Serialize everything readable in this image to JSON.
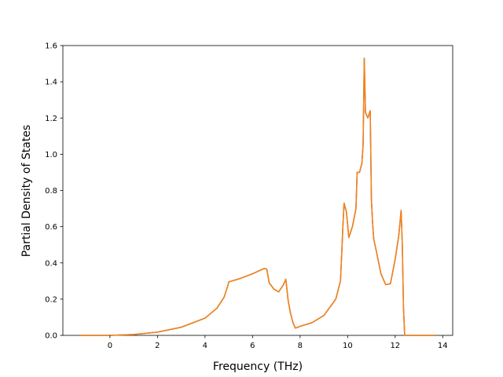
{
  "chart_data": {
    "type": "line",
    "title": "",
    "xlabel": "Frequency (THz)",
    "ylabel": "Partial Density of States",
    "xlim": [
      -1.98,
      14.42
    ],
    "ylim": [
      0.0,
      1.6
    ],
    "xticks": [
      0,
      2,
      4,
      6,
      8,
      10,
      12,
      14
    ],
    "xtick_labels": [
      "0",
      "2",
      "4",
      "6",
      "8",
      "10",
      "12",
      "14"
    ],
    "yticks": [
      0.0,
      0.2,
      0.4,
      0.6,
      0.8,
      1.0,
      1.2,
      1.4,
      1.6
    ],
    "ytick_labels": [
      "0.0",
      "0.2",
      "0.4",
      "0.6",
      "0.8",
      "1.0",
      "1.2",
      "1.4",
      "1.6"
    ],
    "grid": false,
    "legend": "none",
    "series": [
      {
        "color": "#1f77b4",
        "x": [
          -1.28,
          0.0,
          1.0,
          2.0,
          3.0,
          4.0,
          4.5,
          4.8,
          4.95,
          5.0,
          5.5,
          6.0,
          6.5,
          6.6,
          6.7,
          6.9,
          7.1,
          7.3,
          7.4,
          7.5,
          7.6,
          7.7,
          7.8,
          8.0,
          8.5,
          9.0,
          9.5,
          9.7,
          9.8,
          9.85,
          9.95,
          10.05,
          10.2,
          10.35,
          10.4,
          10.5,
          10.6,
          10.65,
          10.7,
          10.75,
          10.85,
          10.95,
          11.0,
          11.05,
          11.1,
          11.2,
          11.4,
          11.6,
          11.8,
          12.0,
          12.15,
          12.25,
          12.3,
          12.35,
          12.4,
          12.45,
          13.0,
          13.7
        ],
        "y": [
          0.0,
          0.0,
          0.005,
          0.018,
          0.045,
          0.095,
          0.15,
          0.21,
          0.27,
          0.295,
          0.315,
          0.34,
          0.37,
          0.365,
          0.29,
          0.255,
          0.24,
          0.28,
          0.31,
          0.19,
          0.12,
          0.07,
          0.04,
          0.05,
          0.07,
          0.11,
          0.2,
          0.3,
          0.6,
          0.73,
          0.68,
          0.54,
          0.6,
          0.7,
          0.9,
          0.9,
          0.95,
          1.05,
          1.53,
          1.23,
          1.2,
          1.24,
          0.75,
          0.62,
          0.53,
          0.47,
          0.34,
          0.28,
          0.285,
          0.42,
          0.55,
          0.69,
          0.5,
          0.15,
          0.0,
          0.0,
          0.0,
          0.0
        ]
      },
      {
        "color": "#ff7f0e",
        "x": [
          -1.28,
          0.0,
          1.0,
          2.0,
          3.0,
          4.0,
          4.5,
          4.8,
          4.95,
          5.0,
          5.5,
          6.0,
          6.5,
          6.6,
          6.7,
          6.9,
          7.1,
          7.3,
          7.4,
          7.5,
          7.6,
          7.7,
          7.8,
          8.0,
          8.5,
          9.0,
          9.5,
          9.7,
          9.8,
          9.85,
          9.95,
          10.05,
          10.2,
          10.35,
          10.4,
          10.5,
          10.6,
          10.65,
          10.7,
          10.75,
          10.85,
          10.95,
          11.0,
          11.05,
          11.1,
          11.2,
          11.4,
          11.6,
          11.8,
          12.0,
          12.15,
          12.25,
          12.3,
          12.35,
          12.4,
          12.45,
          13.0,
          13.7
        ],
        "y": [
          0.0,
          0.0,
          0.005,
          0.018,
          0.045,
          0.095,
          0.15,
          0.21,
          0.27,
          0.295,
          0.315,
          0.34,
          0.37,
          0.365,
          0.29,
          0.255,
          0.24,
          0.28,
          0.31,
          0.19,
          0.12,
          0.07,
          0.04,
          0.05,
          0.07,
          0.11,
          0.2,
          0.3,
          0.6,
          0.73,
          0.68,
          0.54,
          0.6,
          0.7,
          0.9,
          0.9,
          0.95,
          1.05,
          1.53,
          1.23,
          1.2,
          1.24,
          0.75,
          0.62,
          0.53,
          0.47,
          0.34,
          0.28,
          0.285,
          0.42,
          0.55,
          0.69,
          0.5,
          0.15,
          0.0,
          0.0,
          0.0,
          0.0
        ]
      }
    ]
  }
}
